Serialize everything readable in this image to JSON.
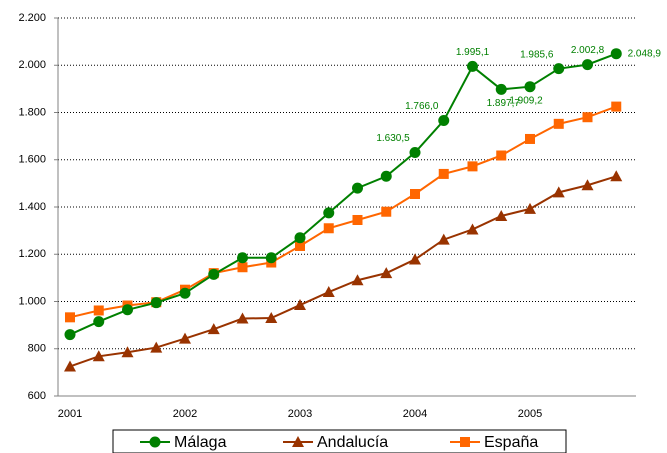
{
  "chart_data": {
    "type": "line",
    "categories": [
      "2001",
      null,
      null,
      null,
      "2002",
      null,
      null,
      null,
      "2003",
      null,
      null,
      null,
      "2004",
      null,
      null,
      null,
      "2005",
      null,
      null,
      null
    ],
    "series": [
      {
        "name": "Málaga",
        "color": "#008000",
        "marker": "circle",
        "values": [
          860,
          915,
          965,
          995,
          1035,
          1115,
          1185,
          1185,
          1270,
          1375,
          1480,
          1530,
          1630.5,
          1766.0,
          1995.1,
          1897.7,
          1909.2,
          1985.6,
          2002.8,
          2048.9
        ],
        "value_labels": [
          null,
          null,
          null,
          null,
          null,
          null,
          null,
          null,
          null,
          null,
          null,
          null,
          "1.630,5",
          "1.766,0",
          "1.995,1",
          "1.897,7",
          "1.909,2",
          "1.985,6",
          "2.002,8",
          "2.048,9"
        ]
      },
      {
        "name": "Andalucía",
        "color": "#993300",
        "marker": "triangle",
        "values": [
          725,
          768,
          785,
          805,
          843,
          883,
          928,
          930,
          985,
          1040,
          1090,
          1120,
          1178,
          1262,
          1305,
          1362,
          1392,
          1462,
          1492,
          1530
        ]
      },
      {
        "name": "España",
        "color": "#ff6600",
        "marker": "square",
        "values": [
          933,
          962,
          983,
          997,
          1050,
          1120,
          1145,
          1165,
          1235,
          1310,
          1345,
          1380,
          1455,
          1540,
          1572,
          1618,
          1688,
          1752,
          1780,
          1825
        ]
      }
    ],
    "ylim": [
      600,
      2200
    ],
    "yticks": [
      600,
      800,
      {
        "value": 1000,
        "label": "1.000"
      },
      {
        "value": 1200,
        "label": "1.200"
      },
      {
        "value": 1400,
        "label": "1.400"
      },
      {
        "value": 1600,
        "label": "1.600"
      },
      {
        "value": 1800,
        "label": "1.800"
      },
      {
        "value": 2000,
        "label": "2.000"
      },
      {
        "value": 2200,
        "label": "2.200"
      }
    ],
    "grid": true,
    "legend": "bottom"
  }
}
